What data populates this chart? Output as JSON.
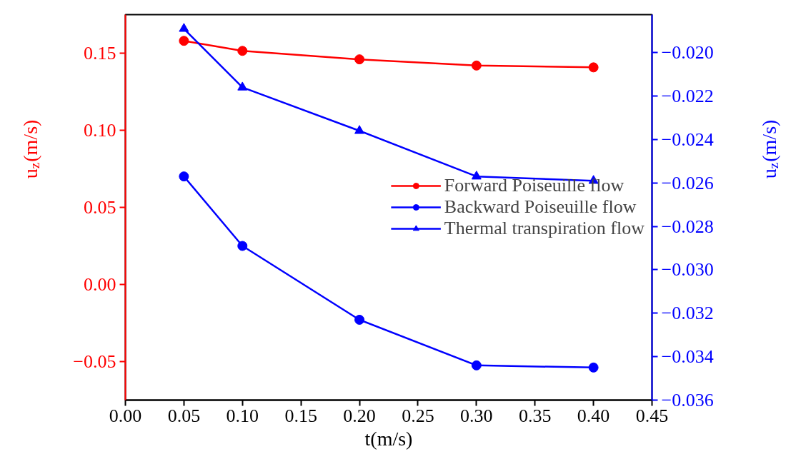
{
  "chart_data": {
    "type": "line",
    "x": [
      0.05,
      0.1,
      0.2,
      0.3,
      0.4
    ],
    "xlabel": "t(m/s)",
    "ylabel": "u$_{z}$(m/s)",
    "y2label": "u$_{z}$(m/s)",
    "series": [
      {
        "name": "Forward Poiseuille flow",
        "color": "#ff0000",
        "values": [
          0.158,
          0.1515,
          0.146,
          0.142,
          0.1408
        ],
        "marker": "circle"
      },
      {
        "name": "Backward Poiseuille flow",
        "color": "#0000ff",
        "values": [
          -0.0257,
          -0.0289,
          -0.0323,
          -0.0344,
          -0.0345
        ],
        "axis": "y2",
        "marker": "circle"
      },
      {
        "name": "Thermal transpiration flow",
        "color": "#0000ff",
        "values": [
          -0.0189,
          -0.0216,
          -0.0236,
          -0.0257,
          -0.0259
        ],
        "axis": "y2",
        "marker": "triangle"
      }
    ],
    "xlim": [
      0,
      0.45
    ],
    "xticks": [
      {
        "value": 0,
        "label": "0.00"
      },
      0.05,
      {
        "value": 0.1,
        "label": "0.10"
      },
      0.15,
      {
        "value": 0.2,
        "label": "0.20"
      },
      0.25,
      {
        "value": 0.3,
        "label": "0.30"
      },
      0.35,
      {
        "value": 0.4,
        "label": "0.40"
      },
      0.45
    ],
    "ylim": [
      -0.075,
      0.175
    ],
    "yticks": [
      {
        "value": -0.05,
        "label": "−0.05"
      },
      {
        "value": 0,
        "label": "0.00"
      },
      0.05,
      {
        "value": 0.1,
        "label": "0.10"
      },
      0.15
    ],
    "y2lim": [
      -0.036,
      -0.01825
    ],
    "y2ticks": [
      {
        "value": -0.036,
        "label": "−0.036"
      },
      {
        "value": -0.034,
        "label": "−0.034"
      },
      {
        "value": -0.032,
        "label": "−0.032"
      },
      {
        "value": -0.03,
        "label": "−0.030"
      },
      {
        "value": -0.028,
        "label": "−0.028"
      },
      {
        "value": -0.026,
        "label": "−0.026"
      },
      {
        "value": -0.024,
        "label": "−0.024"
      },
      {
        "value": -0.022,
        "label": "−0.022"
      },
      {
        "value": -0.02,
        "label": "−0.020"
      }
    ],
    "legend": "right",
    "grid": false
  }
}
